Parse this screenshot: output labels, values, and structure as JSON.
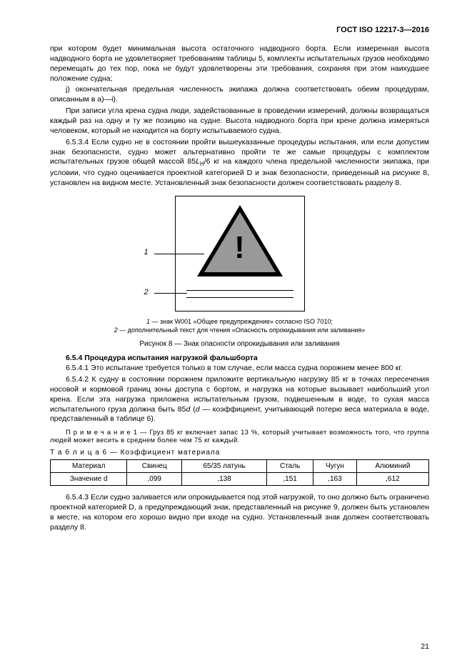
{
  "header": "ГОСТ ISO 12217-3—2016",
  "p1": "при котором будет минимальная высота остаточного надводного борта. Если измеренная высота надводного борта не удовлетворяет требованиям таблицы 5, комплекты испытательных грузов необходимо перемещать до тех пор, пока не будут удовлетворены эти требования, сохраняя при этом наихудшее положение судна;",
  "p2": "j) окончательная предельная численность экипажа должна соответствовать обеим процедурам, описанным в a)—i).",
  "p3": "При записи угла крена судна люди, задействованные в проведении измерений, должны возвращаться каждый раз на одну и ту же позицию на судне. Высота надводного борта при крене должна измеряться человеком, который не находится на борту испытываемого судна.",
  "p4a": "6.5.3.4 Если судно не в состоянии пройти вышеуказанные процедуры испытания, или если допустим знак безопасности, судно может альтернативно пройти те же самые процедуры с комплектом испытательных грузов общей массой 85",
  "p4b": "/6 кг на каждого члена предельной численности экипажа, при условии, что судно оценивается проектной категорией D и знак безопасности, приведенный на рисунке 8, установлен на видном месте. Установленный знак безопасности должен соответствовать разделу 8.",
  "LH_label": "L",
  "LH_sub": "H",
  "fig_label_1": "1",
  "fig_label_2": "2",
  "legend_1_num": "1",
  "legend_1_txt": " — знак W001 «Общее предупреждение» согласно ISO 7010;",
  "legend_2_num": "2",
  "legend_2_txt": " — дополнительный текст для чтения «Опасность опрокидывания или заливания»",
  "fig_caption": "Рисунок 8 — Знак опасности опрокидывания или заливания",
  "sec_title": "6.5.4 Процедура испытания нагрузкой фальшборта",
  "p5": "6.5.4.1 Это испытание требуется только в том случае, если масса судна порожнем менее 800 кг.",
  "p6a": "6.5.4.2 К судну в состоянии порожнем приложите вертикальную нагрузку 85 кг в точках пересечения носовой и кормовой границ зоны доступа с бортом, и нагрузка на которые вызывает наибольший угол крена. Если эта нагрузка приложена испытательным грузом, подвешенным в воде, то сухая масса испытательного груза должна быть 85",
  "p6d": "d",
  "p6b": " (",
  "p6d2": "d",
  "p6c": " — коэффициент, учитывающий потерю веса материала в воде, представленный в таблице 6).",
  "note1": "П р и м е ч а н и е  1 — Груз 85 кг включает запас 13 %, который учитывает возможность того, что группа людей может весить в среднем более чем 75 кг каждый.",
  "table_caption": "Т а б л и ц а  6 — Коэффициент материала",
  "table": {
    "rows": [
      [
        "Материал",
        "Свинец",
        "65/35 латунь",
        "Сталь",
        "Чугун",
        "Алюминий"
      ],
      [
        "Значение d",
        ",099",
        ",138",
        ",151",
        ",163",
        ",612"
      ]
    ]
  },
  "p7": "6.5.4.3 Если судно заливается или опрокидывается под этой нагрузкой, то оно должно быть ограничено проектной категорией D, а предупреждающий знак, представленный на рисунке 9, должен быть установлен в месте, на котором его хорошо видно при входе на судно. Установленный знак должен соответствовать разделу 8.",
  "pagenum": "21"
}
